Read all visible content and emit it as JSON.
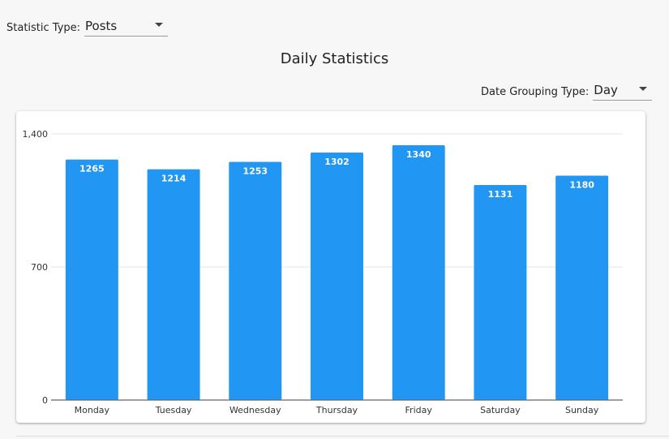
{
  "statistic_type": {
    "label": "Statistic Type:",
    "value": "Posts"
  },
  "date_grouping": {
    "label": "Date Grouping Type:",
    "value": "Day"
  },
  "page_title": "Daily Statistics",
  "colors": {
    "bar": "#2196f3",
    "bar_label": "#ffffff",
    "grid": "#e6e6e6",
    "axis": "#666666"
  },
  "chart_data": {
    "type": "bar",
    "title": "Daily Statistics",
    "xlabel": "",
    "ylabel": "",
    "categories": [
      "Monday",
      "Tuesday",
      "Wednesday",
      "Thursday",
      "Friday",
      "Saturday",
      "Sunday"
    ],
    "values": [
      1265,
      1214,
      1253,
      1302,
      1340,
      1131,
      1180
    ],
    "ylim": [
      0,
      1400
    ],
    "yticks": [
      0,
      700,
      1400
    ],
    "ytick_labels": [
      "0",
      "700",
      "1,400"
    ],
    "grid": true,
    "data_labels": true
  }
}
